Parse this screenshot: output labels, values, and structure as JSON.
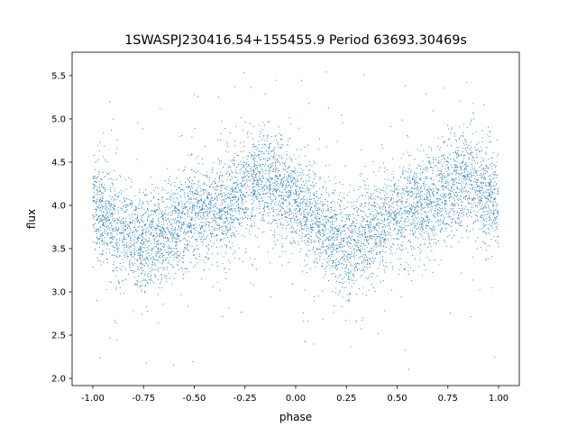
{
  "chart_data": {
    "type": "scatter",
    "title": "1SWASPJ230416.54+155455.9 Period 63693.30469s",
    "xlabel": "phase",
    "ylabel": "flux",
    "xlim": [
      -1.102,
      1.102
    ],
    "ylim": [
      1.917,
      5.77
    ],
    "xticks": [
      "-1.00",
      "-0.75",
      "-0.50",
      "-0.25",
      "0.00",
      "0.25",
      "0.50",
      "0.75",
      "1.00"
    ],
    "xtick_values": [
      -1.0,
      -0.75,
      -0.5,
      -0.25,
      0.0,
      0.25,
      0.5,
      0.75,
      1.0
    ],
    "yticks": [
      "2.0",
      "2.5",
      "3.0",
      "3.5",
      "4.0",
      "4.5",
      "5.0",
      "5.5"
    ],
    "ytick_values": [
      2.0,
      2.5,
      3.0,
      3.5,
      4.0,
      4.5,
      5.0,
      5.5
    ],
    "grid": false,
    "series_color": "#1f77b4",
    "binned_mean": {
      "phase": [
        -1.0,
        -0.9,
        -0.8,
        -0.75,
        -0.7,
        -0.6,
        -0.5,
        -0.4,
        -0.3,
        -0.2,
        -0.15,
        -0.1,
        0.0,
        0.1,
        0.2,
        0.25,
        0.3,
        0.4,
        0.5,
        0.6,
        0.7,
        0.8,
        0.85,
        0.9,
        1.0
      ],
      "flux": [
        4.0,
        3.8,
        3.6,
        3.58,
        3.62,
        3.75,
        3.88,
        3.95,
        4.05,
        4.28,
        4.32,
        4.25,
        4.0,
        3.8,
        3.58,
        3.55,
        3.6,
        3.75,
        3.88,
        3.95,
        4.05,
        4.28,
        4.32,
        4.25,
        4.02
      ]
    },
    "scatter_spread": 0.28,
    "flux_range": [
      2.1,
      5.6
    ]
  }
}
